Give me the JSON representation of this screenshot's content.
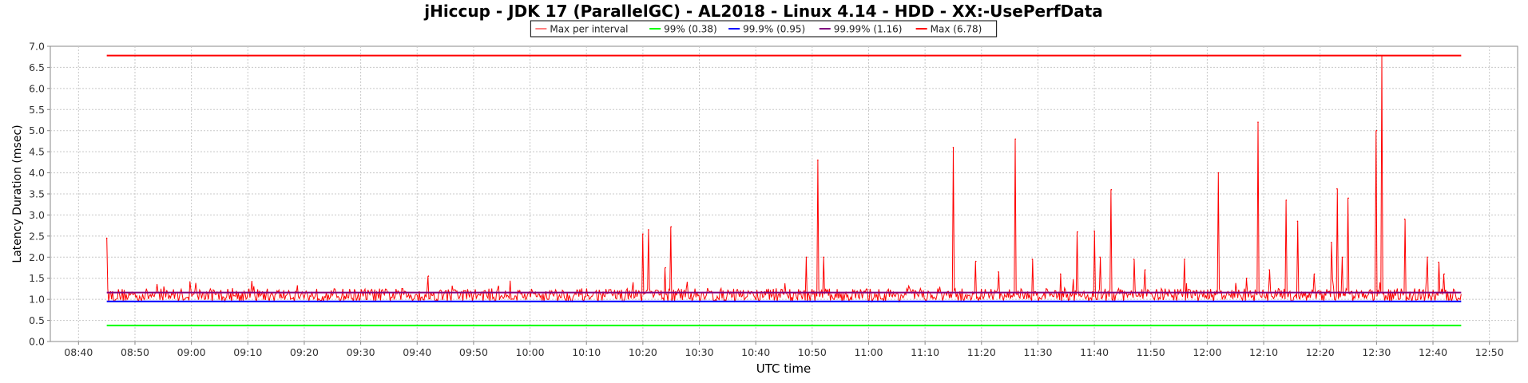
{
  "chart_data": {
    "type": "line",
    "title": "jHiccup - JDK 17 (ParallelGC) - AL2018 - Linux 4.14 - HDD - XX:-UsePerfData",
    "xlabel": "UTC time",
    "ylabel": "Latency Duration (msec)",
    "ylim": [
      0,
      7.0
    ],
    "xlim": [
      "08:35",
      "12:55"
    ],
    "y_ticks": [
      "0.0",
      "0.5",
      "1.0",
      "1.5",
      "2.0",
      "2.5",
      "3.0",
      "3.5",
      "4.0",
      "4.5",
      "5.0",
      "5.5",
      "6.0",
      "6.5",
      "7.0"
    ],
    "x_ticks": [
      "08:40",
      "08:50",
      "09:00",
      "09:10",
      "09:20",
      "09:30",
      "09:40",
      "09:50",
      "10:00",
      "10:10",
      "10:20",
      "10:30",
      "10:40",
      "10:50",
      "11:00",
      "11:10",
      "11:20",
      "11:30",
      "11:40",
      "11:50",
      "12:00",
      "12:10",
      "12:20",
      "12:30",
      "12:40",
      "12:50"
    ],
    "grid": true,
    "legend_position": "top",
    "legend": [
      {
        "label": "Max per interval",
        "color": "#ff0000"
      },
      {
        "label": "99% (0.38)",
        "color": "#00ff00"
      },
      {
        "label": "99.9% (0.95)",
        "color": "#0000ff"
      },
      {
        "label": "99.99% (1.16)",
        "color": "#800080"
      },
      {
        "label": "Max (6.78)",
        "color": "#ff0000"
      }
    ],
    "series": [
      {
        "name": "Max per interval",
        "color": "#ff0000",
        "baseline": 1.1,
        "x_range": [
          "08:45",
          "12:45"
        ],
        "spikes": [
          {
            "x": "08:45",
            "y": 2.45
          },
          {
            "x": "09:42",
            "y": 1.55
          },
          {
            "x": "10:20",
            "y": 2.55
          },
          {
            "x": "10:21",
            "y": 2.65
          },
          {
            "x": "10:24",
            "y": 1.75
          },
          {
            "x": "10:25",
            "y": 2.72
          },
          {
            "x": "10:49",
            "y": 2.0
          },
          {
            "x": "10:51",
            "y": 4.3
          },
          {
            "x": "10:52",
            "y": 2.0
          },
          {
            "x": "11:15",
            "y": 4.6
          },
          {
            "x": "11:19",
            "y": 1.9
          },
          {
            "x": "11:23",
            "y": 1.65
          },
          {
            "x": "11:26",
            "y": 4.8
          },
          {
            "x": "11:29",
            "y": 1.95
          },
          {
            "x": "11:34",
            "y": 1.6
          },
          {
            "x": "11:37",
            "y": 2.6
          },
          {
            "x": "11:40",
            "y": 2.62
          },
          {
            "x": "11:41",
            "y": 2.0
          },
          {
            "x": "11:43",
            "y": 3.6
          },
          {
            "x": "11:47",
            "y": 1.95
          },
          {
            "x": "11:49",
            "y": 1.7
          },
          {
            "x": "11:56",
            "y": 1.95
          },
          {
            "x": "12:02",
            "y": 4.0
          },
          {
            "x": "12:07",
            "y": 1.5
          },
          {
            "x": "12:09",
            "y": 5.2
          },
          {
            "x": "12:11",
            "y": 1.7
          },
          {
            "x": "12:14",
            "y": 3.35
          },
          {
            "x": "12:16",
            "y": 2.85
          },
          {
            "x": "12:19",
            "y": 1.6
          },
          {
            "x": "12:22",
            "y": 2.35
          },
          {
            "x": "12:23",
            "y": 3.62
          },
          {
            "x": "12:24",
            "y": 2.0
          },
          {
            "x": "12:25",
            "y": 3.4
          },
          {
            "x": "12:30",
            "y": 5.0
          },
          {
            "x": "12:31",
            "y": 6.78
          },
          {
            "x": "12:35",
            "y": 2.9
          },
          {
            "x": "12:39",
            "y": 2.0
          },
          {
            "x": "12:41",
            "y": 1.88
          },
          {
            "x": "12:42",
            "y": 1.6
          }
        ]
      },
      {
        "name": "99% (0.38)",
        "color": "#00ff00",
        "x": [
          "08:45",
          "12:45"
        ],
        "values": [
          0.38,
          0.38
        ]
      },
      {
        "name": "99.9% (0.95)",
        "color": "#0000ff",
        "x": [
          "08:45",
          "12:45"
        ],
        "values": [
          0.95,
          0.95
        ]
      },
      {
        "name": "99.99% (1.16)",
        "color": "#800080",
        "x": [
          "08:45",
          "12:45"
        ],
        "values": [
          1.16,
          1.16
        ]
      },
      {
        "name": "Max (6.78)",
        "color": "#ff0000",
        "x": [
          "08:45",
          "12:45"
        ],
        "values": [
          6.78,
          6.78
        ]
      }
    ]
  }
}
